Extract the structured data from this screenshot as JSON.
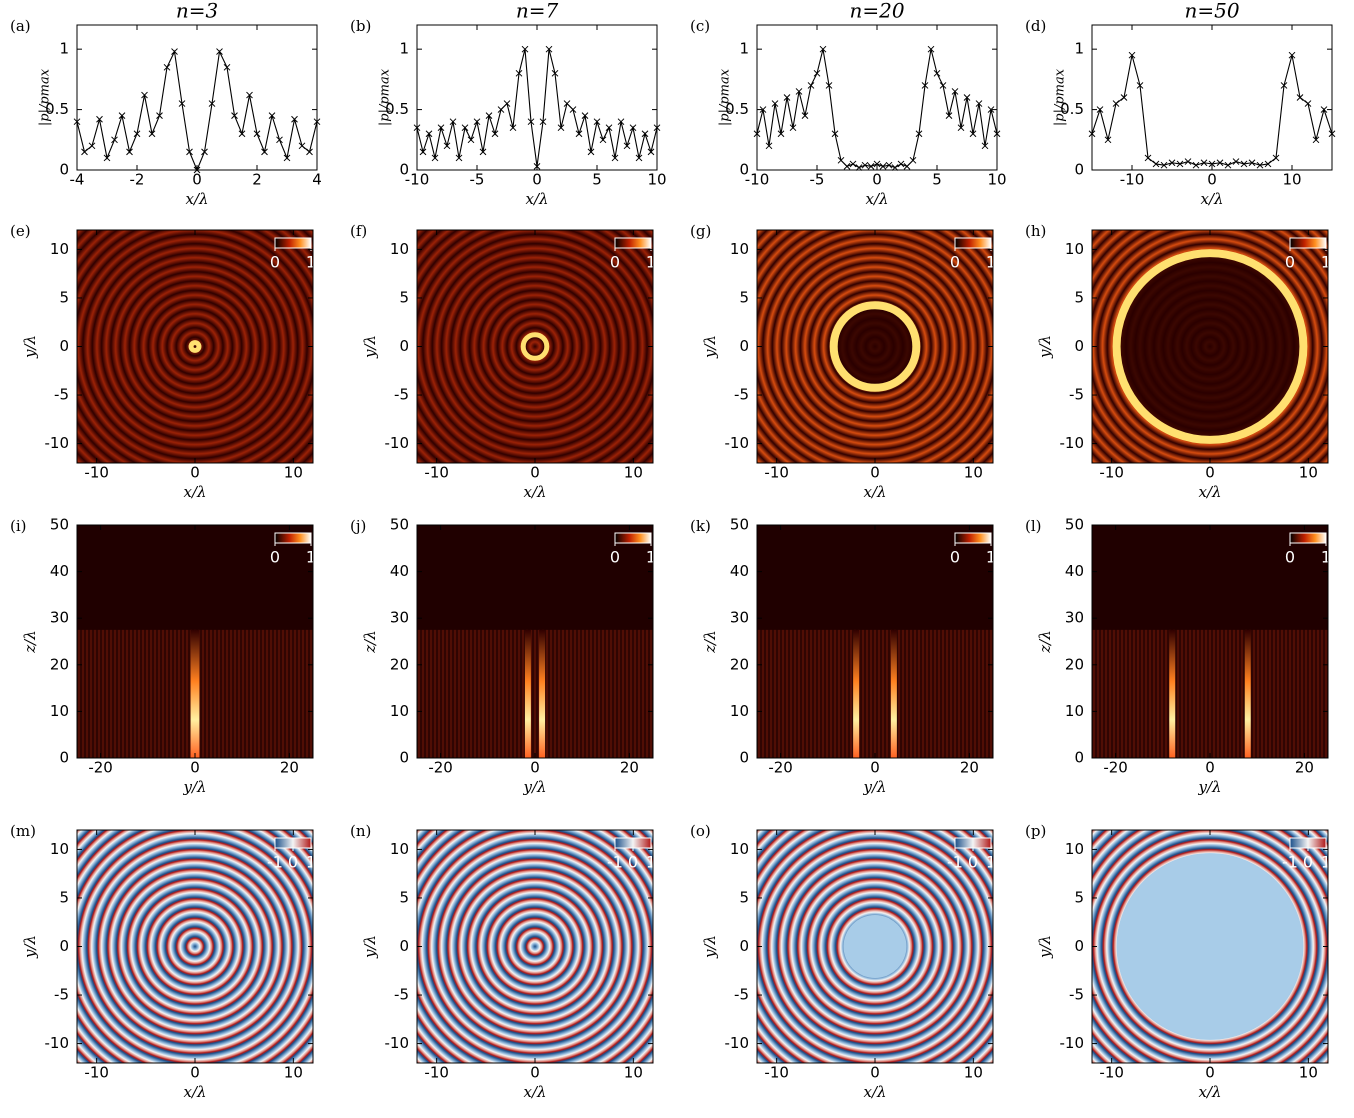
{
  "chart_data": [
    {
      "type": "line",
      "label": "(a)",
      "title": "n=3",
      "xlabel": "x/λ",
      "ylabel": "|p|/pmax",
      "xlim": [
        -4,
        4
      ],
      "ylim": [
        0,
        1.2
      ],
      "xticks": [
        -4,
        -2,
        0,
        2,
        4
      ],
      "yticks": [
        0,
        0.5,
        1
      ],
      "x": [
        -4,
        -3.75,
        -3.5,
        -3.25,
        -3,
        -2.75,
        -2.5,
        -2.25,
        -2,
        -1.75,
        -1.5,
        -1.25,
        -1,
        -0.75,
        -0.5,
        -0.25,
        0,
        0.25,
        0.5,
        0.75,
        1,
        1.25,
        1.5,
        1.75,
        2,
        2.25,
        2.5,
        2.75,
        3,
        3.25,
        3.5,
        3.75,
        4
      ],
      "series": [
        {
          "color": "#000000",
          "values": [
            0.4,
            0.15,
            0.2,
            0.42,
            0.1,
            0.25,
            0.45,
            0.15,
            0.3,
            0.62,
            0.3,
            0.45,
            0.85,
            0.98,
            0.55,
            0.15,
            0.0,
            0.15,
            0.55,
            0.98,
            0.85,
            0.45,
            0.3,
            0.62,
            0.3,
            0.15,
            0.45,
            0.25,
            0.1,
            0.42,
            0.2,
            0.15,
            0.4
          ]
        }
      ]
    },
    {
      "type": "line",
      "label": "(b)",
      "title": "n=7",
      "xlabel": "x/λ",
      "ylabel": "|p|/pmax",
      "xlim": [
        -10,
        10
      ],
      "ylim": [
        0,
        1.2
      ],
      "xticks": [
        -10,
        -5,
        0,
        5,
        10
      ],
      "yticks": [
        0,
        0.5,
        1
      ],
      "x": [
        -10,
        -9.5,
        -9,
        -8.5,
        -8,
        -7.5,
        -7,
        -6.5,
        -6,
        -5.5,
        -5,
        -4.5,
        -4,
        -3.5,
        -3,
        -2.5,
        -2,
        -1.5,
        -1,
        -0.5,
        0,
        0.5,
        1,
        1.5,
        2,
        2.5,
        3,
        3.5,
        4,
        4.5,
        5,
        5.5,
        6,
        6.5,
        7,
        7.5,
        8,
        8.5,
        9,
        9.5,
        10
      ],
      "series": [
        {
          "color": "#000000",
          "values": [
            0.35,
            0.15,
            0.3,
            0.1,
            0.35,
            0.2,
            0.4,
            0.1,
            0.35,
            0.25,
            0.4,
            0.15,
            0.45,
            0.3,
            0.5,
            0.55,
            0.35,
            0.8,
            1.0,
            0.4,
            0.03,
            0.4,
            1.0,
            0.8,
            0.35,
            0.55,
            0.5,
            0.3,
            0.45,
            0.15,
            0.4,
            0.25,
            0.35,
            0.1,
            0.4,
            0.2,
            0.35,
            0.1,
            0.3,
            0.15,
            0.35
          ]
        }
      ]
    },
    {
      "type": "line",
      "label": "(c)",
      "title": "n=20",
      "xlabel": "x/λ",
      "ylabel": "|p|/pmax",
      "xlim": [
        -10,
        10
      ],
      "ylim": [
        0,
        1.2
      ],
      "xticks": [
        -10,
        -5,
        0,
        5,
        10
      ],
      "yticks": [
        0,
        0.5,
        1
      ],
      "x": [
        -10,
        -9.5,
        -9,
        -8.5,
        -8,
        -7.5,
        -7,
        -6.5,
        -6,
        -5.5,
        -5,
        -4.5,
        -4,
        -3.5,
        -3,
        -2.5,
        -2,
        -1.5,
        -1,
        -0.5,
        0,
        0.5,
        1,
        1.5,
        2,
        2.5,
        3,
        3.5,
        4,
        4.5,
        5,
        5.5,
        6,
        6.5,
        7,
        7.5,
        8,
        8.5,
        9,
        9.5,
        10
      ],
      "series": [
        {
          "color": "#000000",
          "values": [
            0.3,
            0.5,
            0.2,
            0.55,
            0.3,
            0.6,
            0.35,
            0.65,
            0.45,
            0.7,
            0.8,
            1.0,
            0.7,
            0.3,
            0.08,
            0.03,
            0.05,
            0.02,
            0.04,
            0.03,
            0.05,
            0.03,
            0.04,
            0.02,
            0.05,
            0.03,
            0.08,
            0.3,
            0.7,
            1.0,
            0.8,
            0.7,
            0.45,
            0.65,
            0.35,
            0.6,
            0.3,
            0.55,
            0.2,
            0.5,
            0.3
          ]
        }
      ]
    },
    {
      "type": "line",
      "label": "(d)",
      "title": "n=50",
      "xlabel": "x/λ",
      "ylabel": "|p|/pmax",
      "xlim": [
        -15,
        15
      ],
      "ylim": [
        0,
        1.2
      ],
      "xticks": [
        -10,
        0,
        10
      ],
      "yticks": [
        0,
        0.5,
        1
      ],
      "x": [
        -15,
        -14,
        -13,
        -12,
        -11,
        -10,
        -9,
        -8,
        -7,
        -6,
        -5,
        -4,
        -3,
        -2,
        -1,
        0,
        1,
        2,
        3,
        4,
        5,
        6,
        7,
        8,
        9,
        10,
        11,
        12,
        13,
        14,
        15
      ],
      "series": [
        {
          "color": "#000000",
          "values": [
            0.3,
            0.5,
            0.25,
            0.55,
            0.6,
            0.95,
            0.7,
            0.1,
            0.05,
            0.04,
            0.06,
            0.05,
            0.07,
            0.04,
            0.06,
            0.05,
            0.06,
            0.04,
            0.07,
            0.05,
            0.06,
            0.04,
            0.05,
            0.1,
            0.7,
            0.95,
            0.6,
            0.55,
            0.25,
            0.5,
            0.3
          ]
        }
      ]
    },
    {
      "type": "heatmap",
      "label": "(e)",
      "xlabel": "x/λ",
      "ylabel": "y/λ",
      "xlim": [
        -12,
        12
      ],
      "ylim": [
        -12,
        12
      ],
      "xticks": [
        -10,
        0,
        10
      ],
      "yticks": [
        -10,
        -5,
        0,
        5,
        10
      ],
      "colorbar_ticks": [
        0,
        1
      ]
    },
    {
      "type": "heatmap",
      "label": "(f)",
      "xlabel": "x/λ",
      "ylabel": "y/λ",
      "xlim": [
        -12,
        12
      ],
      "ylim": [
        -12,
        12
      ],
      "xticks": [
        -10,
        0,
        10
      ],
      "yticks": [
        -10,
        -5,
        0,
        5,
        10
      ],
      "colorbar_ticks": [
        0,
        1
      ]
    },
    {
      "type": "heatmap",
      "label": "(g)",
      "xlabel": "x/λ",
      "ylabel": "y/λ",
      "xlim": [
        -12,
        12
      ],
      "ylim": [
        -12,
        12
      ],
      "xticks": [
        -10,
        0,
        10
      ],
      "yticks": [
        -10,
        -5,
        0,
        5,
        10
      ],
      "colorbar_ticks": [
        0,
        1
      ]
    },
    {
      "type": "heatmap",
      "label": "(h)",
      "xlabel": "x/λ",
      "ylabel": "y/λ",
      "xlim": [
        -12,
        12
      ],
      "ylim": [
        -12,
        12
      ],
      "xticks": [
        -10,
        0,
        10
      ],
      "yticks": [
        -10,
        -5,
        0,
        5,
        10
      ],
      "colorbar_ticks": [
        0,
        1
      ]
    },
    {
      "type": "heatmap",
      "label": "(i)",
      "xlabel": "y/λ",
      "ylabel": "z/λ",
      "xlim": [
        -25,
        25
      ],
      "ylim": [
        0,
        50
      ],
      "xticks": [
        -20,
        0,
        20
      ],
      "yticks": [
        0,
        10,
        20,
        30,
        40,
        50
      ],
      "colorbar_ticks": [
        0,
        1
      ]
    },
    {
      "type": "heatmap",
      "label": "(j)",
      "xlabel": "y/λ",
      "ylabel": "z/λ",
      "xlim": [
        -25,
        25
      ],
      "ylim": [
        0,
        50
      ],
      "xticks": [
        -20,
        0,
        20
      ],
      "yticks": [
        0,
        10,
        20,
        30,
        40,
        50
      ],
      "colorbar_ticks": [
        0,
        1
      ]
    },
    {
      "type": "heatmap",
      "label": "(k)",
      "xlabel": "y/λ",
      "ylabel": "z/λ",
      "xlim": [
        -25,
        25
      ],
      "ylim": [
        0,
        50
      ],
      "xticks": [
        -20,
        0,
        20
      ],
      "yticks": [
        0,
        10,
        20,
        30,
        40,
        50
      ],
      "colorbar_ticks": [
        0,
        1
      ]
    },
    {
      "type": "heatmap",
      "label": "(l)",
      "xlabel": "y/λ",
      "ylabel": "z/λ",
      "xlim": [
        -25,
        25
      ],
      "ylim": [
        0,
        50
      ],
      "xticks": [
        -20,
        0,
        20
      ],
      "yticks": [
        0,
        10,
        20,
        30,
        40,
        50
      ],
      "colorbar_ticks": [
        0,
        1
      ]
    },
    {
      "type": "heatmap",
      "label": "(m)",
      "xlabel": "x/λ",
      "ylabel": "y/λ",
      "xlim": [
        -12,
        12
      ],
      "ylim": [
        -12,
        12
      ],
      "xticks": [
        -10,
        0,
        10
      ],
      "yticks": [
        -10,
        -5,
        0,
        5,
        10
      ],
      "colorbar_ticks": [
        -1,
        0,
        1
      ]
    },
    {
      "type": "heatmap",
      "label": "(n)",
      "xlabel": "x/λ",
      "ylabel": "y/λ",
      "xlim": [
        -12,
        12
      ],
      "ylim": [
        -12,
        12
      ],
      "xticks": [
        -10,
        0,
        10
      ],
      "yticks": [
        -10,
        -5,
        0,
        5,
        10
      ],
      "colorbar_ticks": [
        -1,
        0,
        1
      ]
    },
    {
      "type": "heatmap",
      "label": "(o)",
      "xlabel": "x/λ",
      "ylabel": "y/λ",
      "xlim": [
        -12,
        12
      ],
      "ylim": [
        -12,
        12
      ],
      "xticks": [
        -10,
        0,
        10
      ],
      "yticks": [
        -10,
        -5,
        0,
        5,
        10
      ],
      "colorbar_ticks": [
        -1,
        0,
        1
      ]
    },
    {
      "type": "heatmap",
      "label": "(p)",
      "xlabel": "x/λ",
      "ylabel": "y/λ",
      "xlim": [
        -12,
        12
      ],
      "ylim": [
        -12,
        12
      ],
      "xticks": [
        -10,
        0,
        10
      ],
      "yticks": [
        -10,
        -5,
        0,
        5,
        10
      ],
      "colorbar_ticks": [
        -1,
        0,
        1
      ]
    }
  ]
}
